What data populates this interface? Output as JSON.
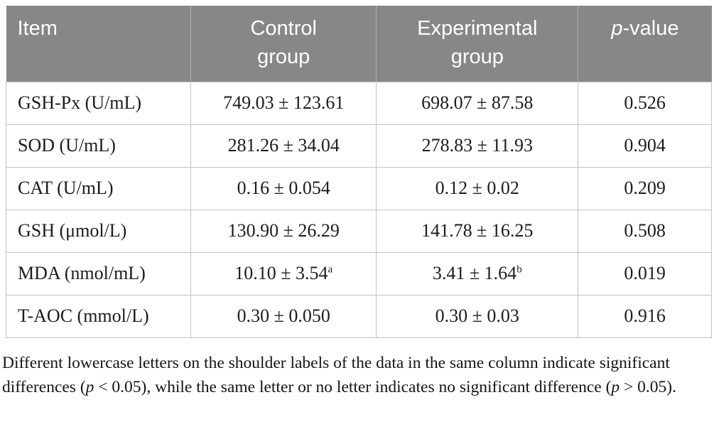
{
  "table": {
    "headers": {
      "item": "Item",
      "control": "Control group",
      "experimental": "Experimental group",
      "pvalue_italic": "p",
      "pvalue_rest": "-value"
    },
    "rows": [
      {
        "item": "GSH-Px (U/mL)",
        "control": {
          "text": "749.03 ± 123.61"
        },
        "experimental": {
          "text": "698.07 ± 87.58"
        },
        "pvalue": "0.526"
      },
      {
        "item": "SOD (U/mL)",
        "control": {
          "text": "281.26 ± 34.04"
        },
        "experimental": {
          "text": "278.83 ± 11.93"
        },
        "pvalue": "0.904"
      },
      {
        "item": "CAT (U/mL)",
        "control": {
          "text": "0.16 ± 0.054"
        },
        "experimental": {
          "text": "0.12 ± 0.02"
        },
        "pvalue": "0.209"
      },
      {
        "item": "GSH (μmol/L)",
        "control": {
          "text": "130.90 ± 26.29"
        },
        "experimental": {
          "text": "141.78 ± 16.25"
        },
        "pvalue": "0.508"
      },
      {
        "item": "MDA (nmol/mL)",
        "control": {
          "text": "10.10 ± 3.54",
          "sup": "a"
        },
        "experimental": {
          "text": "3.41 ± 1.64",
          "sup": "b"
        },
        "pvalue": "0.019"
      },
      {
        "item": "T-AOC (mmol/L)",
        "control": {
          "text": "0.30 ± 0.050"
        },
        "experimental": {
          "text": "0.30 ± 0.03"
        },
        "pvalue": "0.916"
      }
    ]
  },
  "footnote": {
    "seg1": "Different lowercase letters on the shoulder labels of the data in the same column indicate significant differences (",
    "p1": "p",
    "seg2": " < 0.05), while the same letter or no letter indicates no significant difference (",
    "p2": "p",
    "seg3": " > 0.05)."
  },
  "colors": {
    "header_bg": "#878787",
    "header_text": "#ffffff",
    "header_divider": "#b0b0b0",
    "cell_border": "#c3c3c3",
    "body_text": "#1c1c1c"
  }
}
